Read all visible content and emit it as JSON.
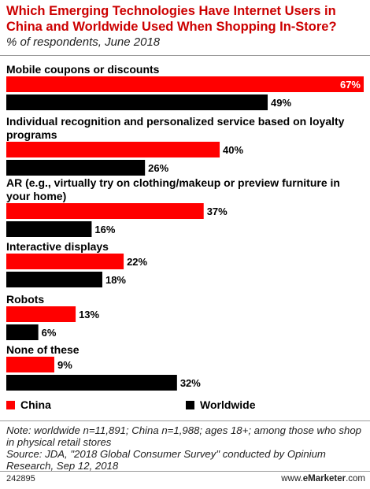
{
  "header": {
    "title": "Which Emerging Technologies Have Internet Users in China and Worldwide Used When Shopping In-Store?",
    "subtitle": "% of respondents, June 2018"
  },
  "chart_data": {
    "type": "bar",
    "orientation": "horizontal",
    "value_suffix": "%",
    "categories": [
      "Mobile coupons or discounts",
      "Individual recognition and personalized service based on loyalty programs",
      "AR (e.g., virtually try on clothing/makeup or preview furniture in your home)",
      "Interactive displays",
      "Robots",
      "None of these"
    ],
    "series": [
      {
        "name": "China",
        "color": "#ff0000",
        "values": [
          67,
          40,
          37,
          22,
          13,
          9
        ]
      },
      {
        "name": "Worldwide",
        "color": "#000000",
        "values": [
          49,
          26,
          16,
          18,
          6,
          32
        ]
      }
    ],
    "xlim": [
      0,
      67
    ],
    "grid": false,
    "legend_position": "bottom"
  },
  "legend": {
    "china": "China",
    "worldwide": "Worldwide"
  },
  "notes": {
    "line1": "Note: worldwide n=11,891; China n=1,988; ages 18+; among those who shop in physical retail stores",
    "line2": "Source: JDA, \"2018 Global Consumer Survey\" conducted by Opinium Research, Sep 12, 2018"
  },
  "footer": {
    "id": "242895",
    "brand_prefix": "www.",
    "brand_name": "eMarketer",
    "brand_suffix": ".com"
  },
  "colors": {
    "accent": "#cc0000",
    "china": "#ff0000",
    "worldwide": "#000000"
  }
}
